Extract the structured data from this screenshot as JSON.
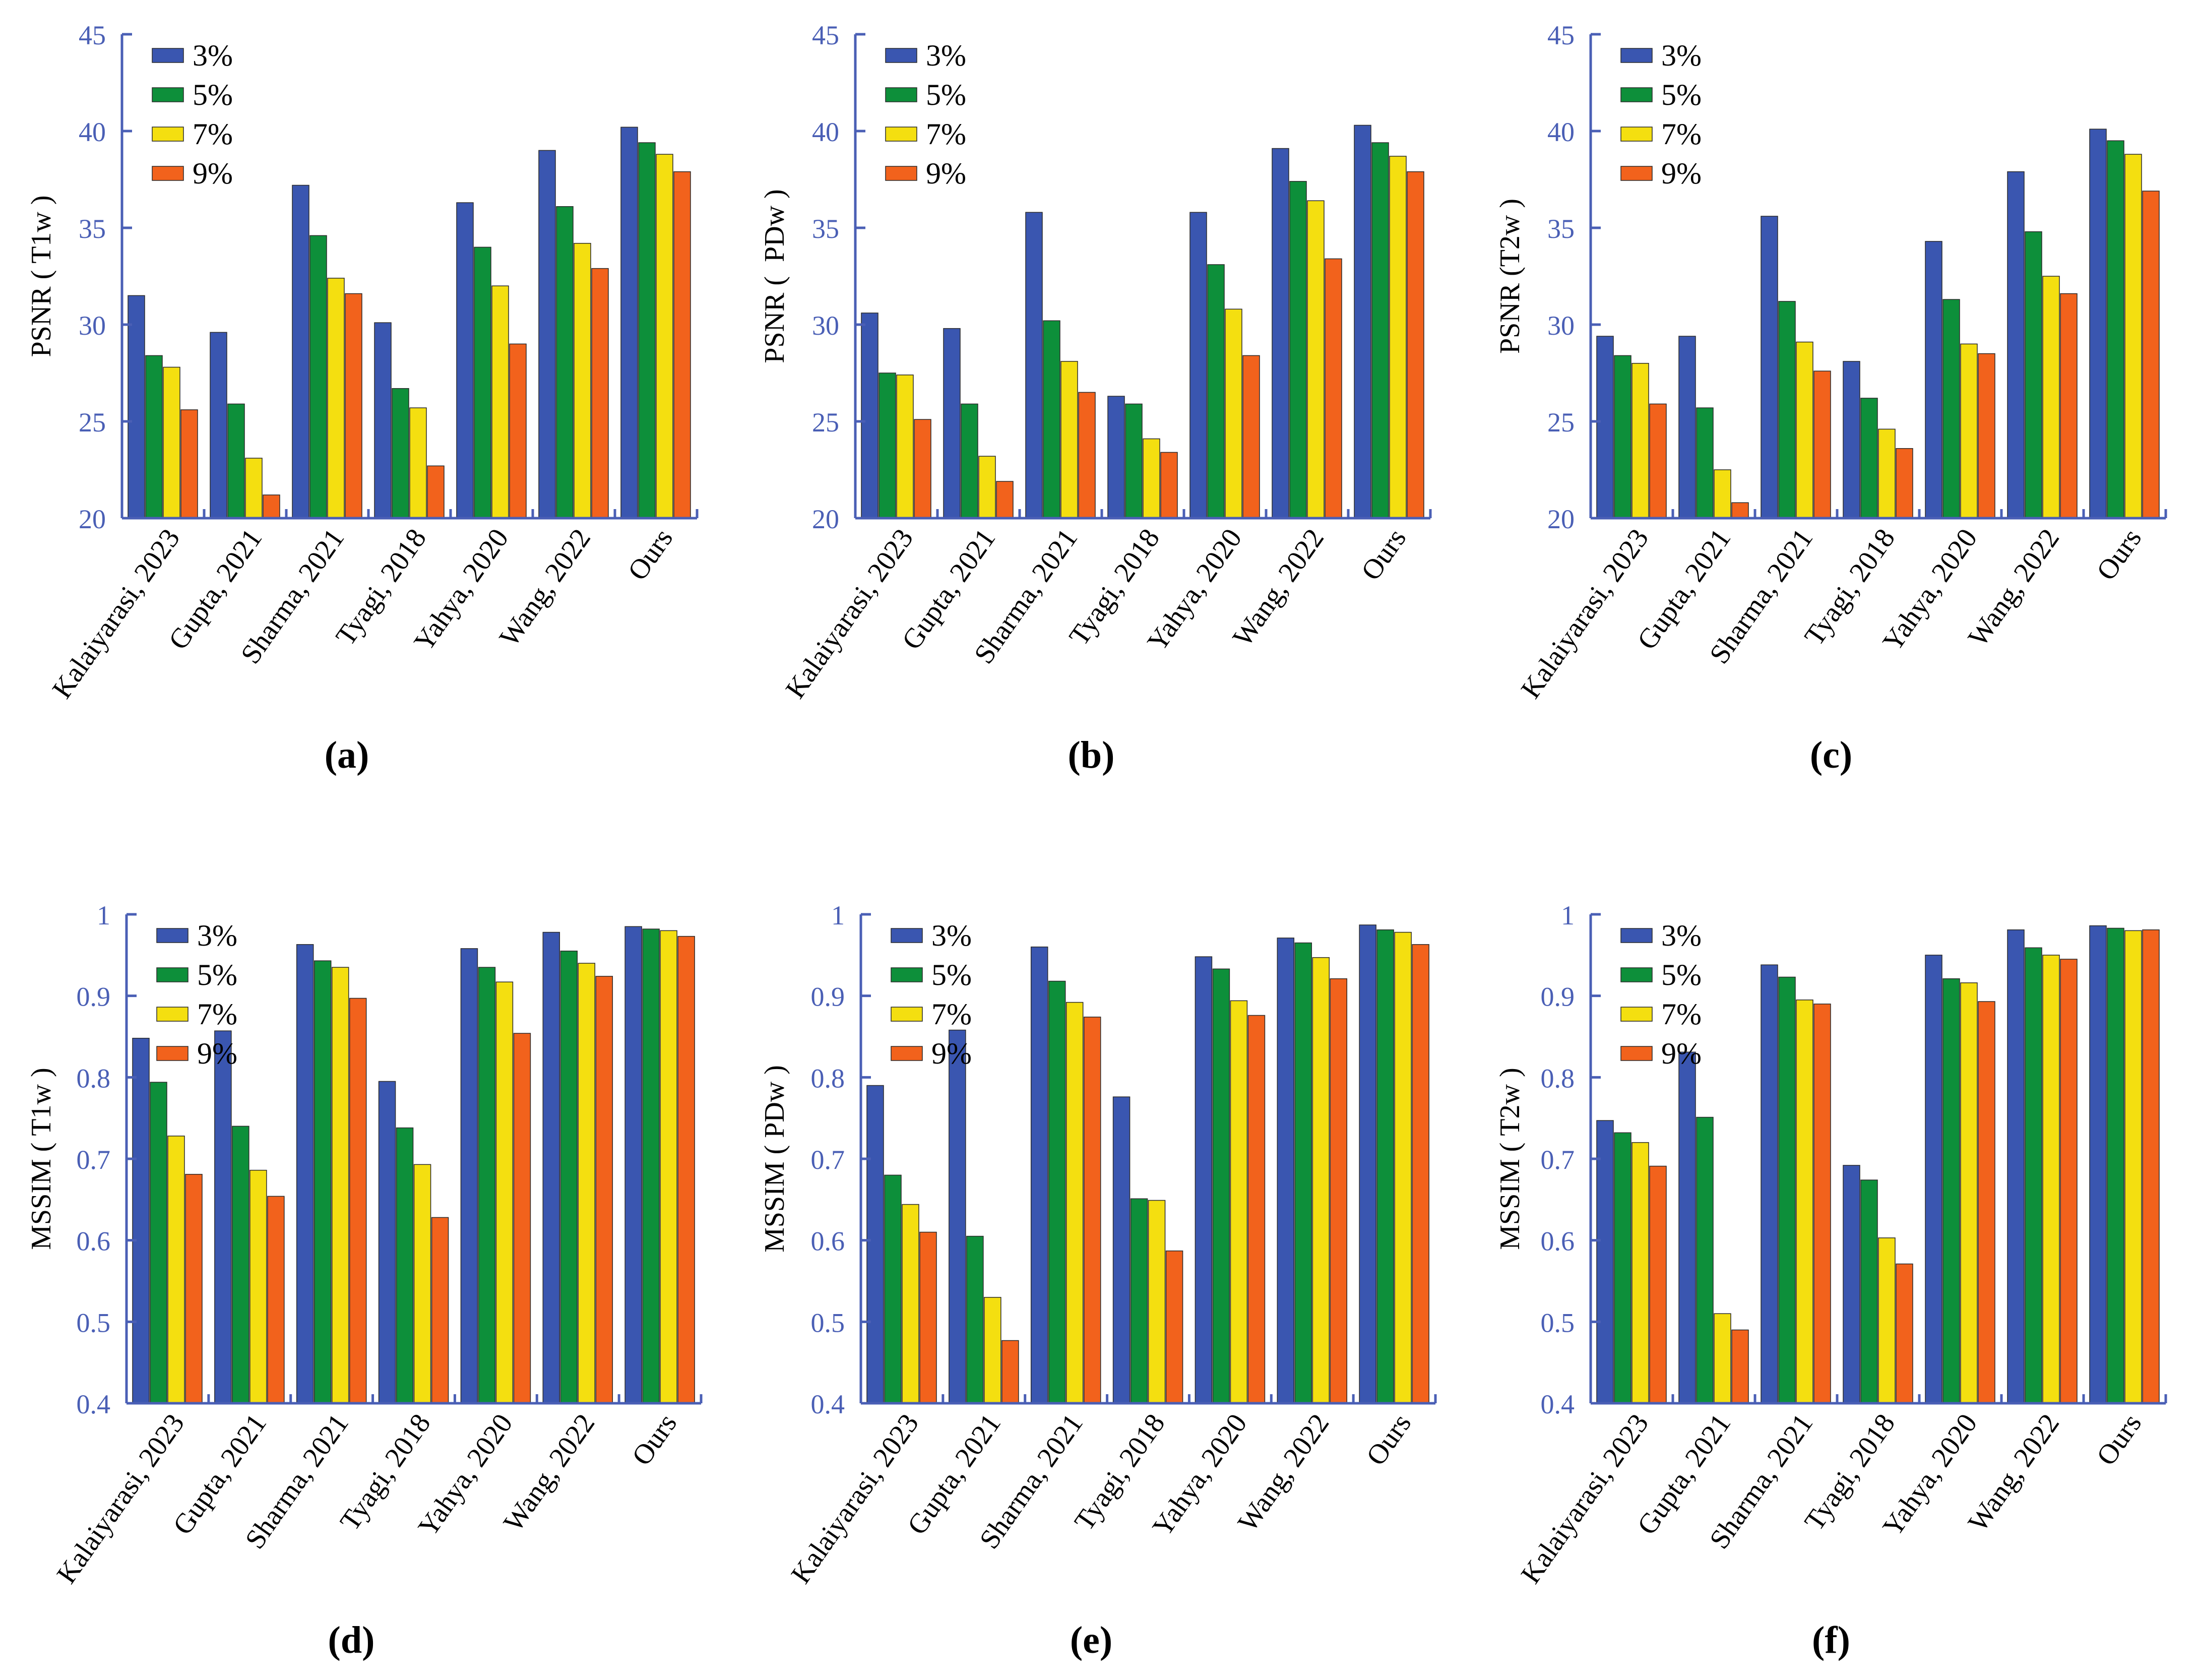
{
  "colors": {
    "axis": "#4a5fb5",
    "series": [
      "#3a56b0",
      "#0d8f3a",
      "#f4df10",
      "#f2621c"
    ]
  },
  "chart_data": [
    {
      "type": "bar",
      "ylabel": "PSNR ( T1w )",
      "ylim": [
        20,
        45
      ],
      "yticks": [
        20,
        25,
        30,
        35,
        40,
        45
      ],
      "panel_label": "(a)",
      "categories": [
        "Kalaiyarasi, 2023",
        "Gupta, 2021",
        "Sharma, 2021",
        "Tyagi, 2018",
        "Yahya, 2020",
        "Wang, 2022",
        "Ours"
      ],
      "series": [
        {
          "name": "3%",
          "values": [
            31.5,
            29.6,
            37.2,
            30.1,
            36.3,
            39.0,
            40.2
          ]
        },
        {
          "name": "5%",
          "values": [
            28.4,
            25.9,
            34.6,
            26.7,
            34.0,
            36.1,
            39.4
          ]
        },
        {
          "name": "7%",
          "values": [
            27.8,
            23.1,
            32.4,
            25.7,
            32.0,
            34.2,
            38.8
          ]
        },
        {
          "name": "9%",
          "values": [
            25.6,
            21.2,
            31.6,
            22.7,
            29.0,
            32.9,
            37.9
          ]
        }
      ],
      "legend": "top-left",
      "grid": false
    },
    {
      "type": "bar",
      "ylabel": "PSNR (  PDw )",
      "ylim": [
        20,
        45
      ],
      "yticks": [
        20,
        25,
        30,
        35,
        40,
        45
      ],
      "panel_label": "(b)",
      "categories": [
        "Kalaiyarasi, 2023",
        "Gupta, 2021",
        "Sharma, 2021",
        "Tyagi, 2018",
        "Yahya, 2020",
        "Wang, 2022",
        "Ours"
      ],
      "series": [
        {
          "name": "3%",
          "values": [
            30.6,
            29.8,
            35.8,
            26.3,
            35.8,
            39.1,
            40.3
          ]
        },
        {
          "name": "5%",
          "values": [
            27.5,
            25.9,
            30.2,
            25.9,
            33.1,
            37.4,
            39.4
          ]
        },
        {
          "name": "7%",
          "values": [
            27.4,
            23.2,
            28.1,
            24.1,
            30.8,
            36.4,
            38.7
          ]
        },
        {
          "name": "9%",
          "values": [
            25.1,
            21.9,
            26.5,
            23.4,
            28.4,
            33.4,
            37.9
          ]
        }
      ],
      "legend": "top-left",
      "grid": false
    },
    {
      "type": "bar",
      "ylabel": "PSNR (T2w )",
      "ylim": [
        20,
        45
      ],
      "yticks": [
        20,
        25,
        30,
        35,
        40,
        45
      ],
      "panel_label": "(c)",
      "categories": [
        "Kalaiyarasi, 2023",
        "Gupta, 2021",
        "Sharma, 2021",
        "Tyagi, 2018",
        "Yahya, 2020",
        "Wang, 2022",
        "Ours"
      ],
      "series": [
        {
          "name": "3%",
          "values": [
            29.4,
            29.4,
            35.6,
            28.1,
            34.3,
            37.9,
            40.1
          ]
        },
        {
          "name": "5%",
          "values": [
            28.4,
            25.7,
            31.2,
            26.2,
            31.3,
            34.8,
            39.5
          ]
        },
        {
          "name": "7%",
          "values": [
            28.0,
            22.5,
            29.1,
            24.6,
            29.0,
            32.5,
            38.8
          ]
        },
        {
          "name": "9%",
          "values": [
            25.9,
            20.8,
            27.6,
            23.6,
            28.5,
            31.6,
            36.9
          ]
        }
      ],
      "legend": "top-left",
      "grid": false
    },
    {
      "type": "bar",
      "ylabel": "MSSIM ( T1w )",
      "ylim": [
        0.4,
        1
      ],
      "yticks": [
        0.4,
        0.5,
        0.6,
        0.7,
        0.8,
        0.9,
        1
      ],
      "panel_label": "(d)",
      "categories": [
        "Kalaiyarasi, 2023",
        "Gupta, 2021",
        "Sharma, 2021",
        "Tyagi, 2018",
        "Yahya, 2020",
        "Wang, 2022",
        "Ours"
      ],
      "series": [
        {
          "name": "3%",
          "values": [
            0.848,
            0.857,
            0.963,
            0.795,
            0.958,
            0.978,
            0.985
          ]
        },
        {
          "name": "5%",
          "values": [
            0.794,
            0.74,
            0.943,
            0.738,
            0.935,
            0.955,
            0.982
          ]
        },
        {
          "name": "7%",
          "values": [
            0.728,
            0.686,
            0.935,
            0.693,
            0.917,
            0.94,
            0.98
          ]
        },
        {
          "name": "9%",
          "values": [
            0.681,
            0.654,
            0.897,
            0.628,
            0.854,
            0.924,
            0.973
          ]
        }
      ],
      "legend": "top-left",
      "grid": false
    },
    {
      "type": "bar",
      "ylabel": "MSSIM ( PDw )",
      "ylim": [
        0.4,
        1
      ],
      "yticks": [
        0.4,
        0.5,
        0.6,
        0.7,
        0.8,
        0.9,
        1
      ],
      "panel_label": "(e)",
      "categories": [
        "Kalaiyarasi, 2023",
        "Gupta, 2021",
        "Sharma, 2021",
        "Tyagi, 2018",
        "Yahya, 2020",
        "Wang, 2022",
        "Ours"
      ],
      "series": [
        {
          "name": "3%",
          "values": [
            0.79,
            0.858,
            0.96,
            0.776,
            0.948,
            0.971,
            0.987
          ]
        },
        {
          "name": "5%",
          "values": [
            0.68,
            0.605,
            0.918,
            0.651,
            0.933,
            0.965,
            0.981
          ]
        },
        {
          "name": "7%",
          "values": [
            0.644,
            0.53,
            0.892,
            0.649,
            0.894,
            0.947,
            0.978
          ]
        },
        {
          "name": "9%",
          "values": [
            0.61,
            0.477,
            0.874,
            0.587,
            0.876,
            0.921,
            0.963
          ]
        }
      ],
      "legend": "top-left",
      "grid": false
    },
    {
      "type": "bar",
      "ylabel": "MSSIM ( T2w )",
      "ylim": [
        0.4,
        1
      ],
      "yticks": [
        0.4,
        0.5,
        0.6,
        0.7,
        0.8,
        0.9,
        1
      ],
      "panel_label": "(f)",
      "categories": [
        "Kalaiyarasi, 2023",
        "Gupta, 2021",
        "Sharma, 2021",
        "Tyagi, 2018",
        "Yahya, 2020",
        "Wang, 2022",
        "Ours"
      ],
      "series": [
        {
          "name": "3%",
          "values": [
            0.747,
            0.831,
            0.938,
            0.692,
            0.95,
            0.981,
            0.986
          ]
        },
        {
          "name": "5%",
          "values": [
            0.732,
            0.751,
            0.923,
            0.674,
            0.921,
            0.959,
            0.983
          ]
        },
        {
          "name": "7%",
          "values": [
            0.72,
            0.51,
            0.895,
            0.603,
            0.916,
            0.95,
            0.98
          ]
        },
        {
          "name": "9%",
          "values": [
            0.691,
            0.49,
            0.89,
            0.571,
            0.893,
            0.945,
            0.981
          ]
        }
      ],
      "legend": "top-left",
      "grid": false
    }
  ]
}
